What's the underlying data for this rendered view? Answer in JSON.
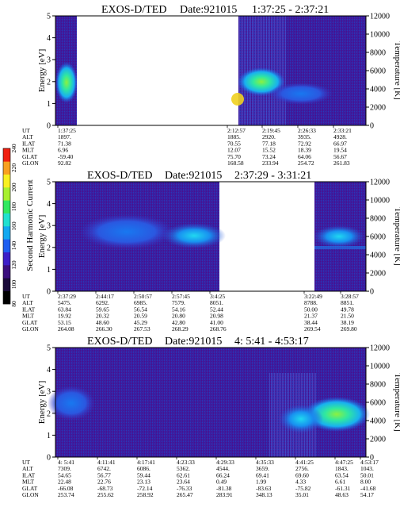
{
  "chart_data": [
    {
      "type": "heatmap",
      "title": "EXOS-D/TED",
      "date_label": "Date:921015",
      "time_range": "1:37:25 - 2:37:21",
      "ylabel": "Energy [eV]",
      "ylabel_right": "Temperature [K]",
      "ylim": [
        0,
        5
      ],
      "yticks": [
        "0",
        "1",
        "2",
        "3",
        "4",
        "5"
      ],
      "ylim_right": [
        0,
        12000
      ],
      "yticks_right": [
        "0",
        "2000",
        "4000",
        "6000",
        "8000",
        "10000",
        "12000"
      ],
      "data_segments": [
        {
          "start": "1:37:25",
          "end": "1:45:40"
        },
        {
          "start": "2:12:57",
          "end": "2:37:21"
        }
      ],
      "ephemeris": {
        "row_labels": [
          "UT",
          "ALT",
          "ILAT",
          "MLT",
          "GLAT",
          "GLON"
        ],
        "columns": [
          {
            "UT": "1:37:25",
            "ALT": "1897.",
            "ILAT": "71.38",
            "MLT": "6.96",
            "GLAT": "-59.40",
            "GLON": "92.82"
          },
          {
            "UT": "2:12:57",
            "ALT": "1885.",
            "ILAT": "70.55",
            "MLT": "12.07",
            "GLAT": "75.70",
            "GLON": "168.58"
          },
          {
            "UT": "2:19:45",
            "ALT": "2920.",
            "ILAT": "77.18",
            "MLT": "15.52",
            "GLAT": "73.24",
            "GLON": "233.94"
          },
          {
            "UT": "2:26:33",
            "ALT": "3935.",
            "ILAT": "72.92",
            "MLT": "18.39",
            "GLAT": "64.06",
            "GLON": "254.72"
          },
          {
            "UT": "2:33:21",
            "ALT": "4928.",
            "ILAT": "66.97",
            "MLT": "19.54",
            "GLAT": "56.67",
            "GLON": "261.83"
          }
        ]
      }
    },
    {
      "type": "heatmap",
      "title": "EXOS-D/TED",
      "date_label": "Date:921015",
      "time_range": "2:37:29 - 3:31:21",
      "ylabel": "Energy [eV]",
      "ylabel_right": "Temperature [K]",
      "ylim": [
        0,
        5
      ],
      "yticks": [
        "0",
        "1",
        "2",
        "3",
        "4",
        "5"
      ],
      "ylim_right": [
        0,
        12000
      ],
      "yticks_right": [
        "0",
        "2000",
        "4000",
        "6000",
        "8000",
        "10000",
        "12000"
      ],
      "data_segments": [
        {
          "start": "2:37:29",
          "end": "3:05:35"
        },
        {
          "start": "3:21:45",
          "end": "3:31:21"
        }
      ],
      "ephemeris": {
        "row_labels": [
          "UT",
          "ALT",
          "ILAT",
          "MLT",
          "GLAT",
          "GLON"
        ],
        "columns": [
          {
            "UT": "2:37:29",
            "ALT": "5475.",
            "ILAT": "63.84",
            "MLT": "19.92",
            "GLAT": "53.15",
            "GLON": "264.08"
          },
          {
            "UT": "2:44:17",
            "ALT": "6292.",
            "ILAT": "59.65",
            "MLT": "20.32",
            "GLAT": "48.60",
            "GLON": "266.30"
          },
          {
            "UT": "2:50:57",
            "ALT": "6985.",
            "ILAT": "56.54",
            "MLT": "20.59",
            "GLAT": "45.29",
            "GLON": "267.53"
          },
          {
            "UT": "2:57:45",
            "ALT": "7579.",
            "ILAT": "54.16",
            "MLT": "20.80",
            "GLAT": "42.80",
            "GLON": "268.29"
          },
          {
            "UT": "3:4:25",
            "ALT": "8051.",
            "ILAT": "52.44",
            "MLT": "20.98",
            "GLAT": "41.00",
            "GLON": "268.76"
          },
          {
            "UT": "3:22:49",
            "ALT": "8788.",
            "ILAT": "50.00",
            "MLT": "21.37",
            "GLAT": "38.44",
            "GLON": "269.54"
          },
          {
            "UT": "3:28:57",
            "ALT": "8851.",
            "ILAT": "49.78",
            "MLT": "21.50",
            "GLAT": "38.19",
            "GLON": "269.80"
          }
        ]
      }
    },
    {
      "type": "heatmap",
      "title": "EXOS-D/TED",
      "date_label": "Date:921015",
      "time_range": "4: 5:41 - 4:53:17",
      "ylabel": "Energy [eV]",
      "ylabel_right": "Temperature [K]",
      "ylim": [
        0,
        5
      ],
      "yticks": [
        "0",
        "1",
        "2",
        "3",
        "4",
        "5"
      ],
      "ylim_right": [
        0,
        12000
      ],
      "yticks_right": [
        "0",
        "2000",
        "4000",
        "6000",
        "8000",
        "10000",
        "12000"
      ],
      "data_segments": [
        {
          "start": "4:05:41",
          "end": "4:53:17"
        }
      ],
      "ephemeris": {
        "row_labels": [
          "UT",
          "ALT",
          "ILAT",
          "MLT",
          "GLAT",
          "GLON"
        ],
        "columns": [
          {
            "UT": "4: 5:41",
            "ALT": "7309.",
            "ILAT": "54.65",
            "MLT": "22.48",
            "GLAT": "-66.08",
            "GLON": "253.74"
          },
          {
            "UT": "4:11:41",
            "ALT": "6742.",
            "ILAT": "56.77",
            "MLT": "22.76",
            "GLAT": "-68.73",
            "GLON": "255.62"
          },
          {
            "UT": "4:17:41",
            "ALT": "6086.",
            "ILAT": "59.44",
            "MLT": "23.13",
            "GLAT": "-72.14",
            "GLON": "258.92"
          },
          {
            "UT": "4:23:33",
            "ALT": "5362.",
            "ILAT": "62.61",
            "MLT": "23.64",
            "GLAT": "-76.33",
            "GLON": "265.47"
          },
          {
            "UT": "4:29:33",
            "ALT": "4544.",
            "ILAT": "66.24",
            "MLT": "0.49",
            "GLAT": "-81.38",
            "GLON": "283.91"
          },
          {
            "UT": "4:35:33",
            "ALT": "3659.",
            "ILAT": "69.41",
            "MLT": "1.99",
            "GLAT": "-83.63",
            "GLON": "348.13"
          },
          {
            "UT": "4:41:25",
            "ALT": "2756.",
            "ILAT": "69.60",
            "MLT": "4.33",
            "GLAT": "-75.82",
            "GLON": "35.01"
          },
          {
            "UT": "4:47:25",
            "ALT": "1843.",
            "ILAT": "63.54",
            "MLT": "6.61",
            "GLAT": "-61.31",
            "GLON": "48.63"
          },
          {
            "UT": "4:53:17",
            "ALT": "1043.",
            "ILAT": "50.01",
            "MLT": "8.00",
            "GLAT": "-41.68",
            "GLON": "54.17"
          }
        ]
      }
    }
  ],
  "colorbar": {
    "label": "Second Harmonic Current",
    "range": [
      80,
      240
    ],
    "ticks": [
      "80",
      "100",
      "120",
      "140",
      "160",
      "180",
      "200",
      "220",
      "240"
    ],
    "colors": [
      "#000000",
      "#1a0a3a",
      "#3a0e7e",
      "#3c1ec8",
      "#1e5ef0",
      "#12a8f0",
      "#20e0d0",
      "#30e860",
      "#a8f030",
      "#f8f020",
      "#f8a020",
      "#f02010"
    ]
  }
}
